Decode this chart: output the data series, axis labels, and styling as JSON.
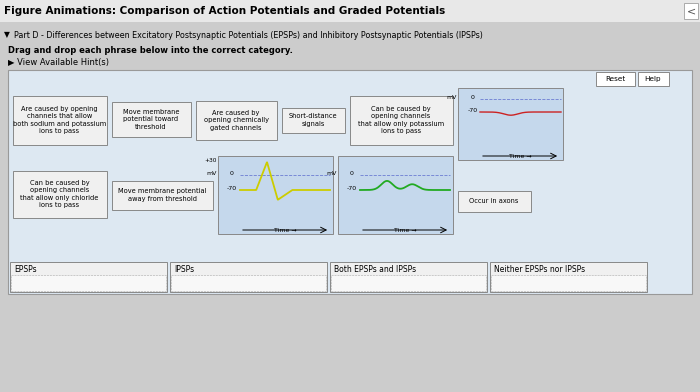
{
  "title": "Figure Animations: Comparison of Action Potentials and Graded Potentials",
  "part_d_text": "Part D - Differences between Excitatory Postsynaptic Potentials (EPSPs) and Inhibitory Postsynaptic Potentials (IPSPs)",
  "drag_drop_text": "Drag and drop each phrase below into the correct category.",
  "hint_text": "▶ View Available Hint(s)",
  "phrase_boxes_row1": [
    "Are caused by opening\nchannels that allow\nboth sodium and potassium\nions to pass",
    "Move membrane\npotential toward\nthreshold",
    "Are caused by\nopening chemically\ngated channels",
    "Short-distance\nsignals",
    "Can be caused by\nopening channels\nthat allow only potassium\nions to pass"
  ],
  "phrase_boxes_row2": [
    "Can be caused by\nopening channels\nthat allow only chloride\nions to pass",
    "Move membrane potential\naway from threshold",
    "Occur in axons"
  ],
  "category_boxes": [
    "EPSPs",
    "IPSPs",
    "Both EPSPs and IPSPs",
    "Neither EPSPs nor IPSPs"
  ],
  "reset_text": "Reset",
  "help_text": "Help",
  "outer_bg": "#cccccc",
  "title_bg": "#e8e8e8",
  "panel_bg": "#dde8f2",
  "box_bg": "#f0f0f0",
  "graph_bg": "#c5d8ec",
  "cat_bg": "#f0f0f0"
}
